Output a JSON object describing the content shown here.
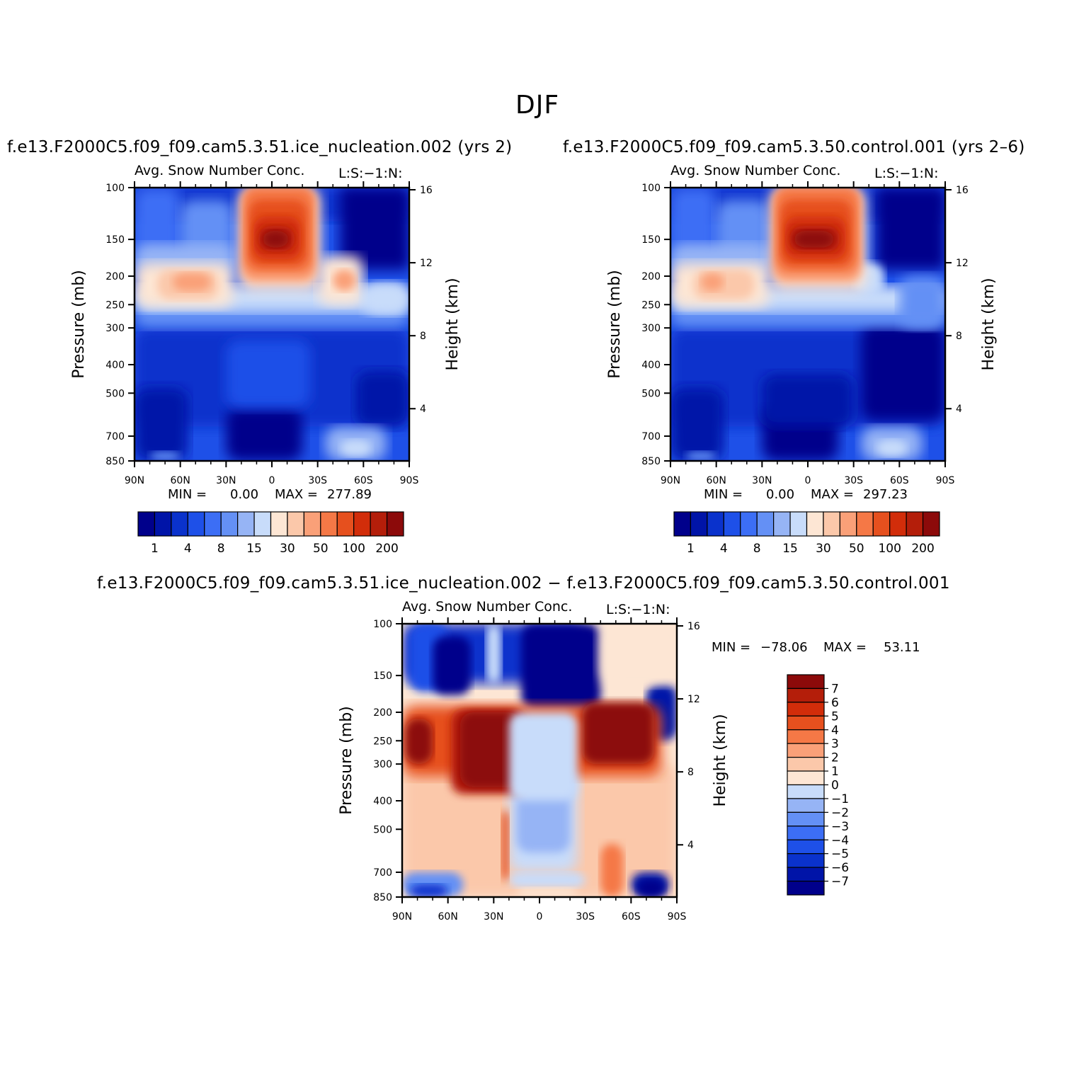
{
  "main_title": "DJF",
  "panels": [
    {
      "id": "run",
      "title": "f.e13.F2000C5.f09_f09.cam5.3.51.ice_nucleation.002 (yrs 2)",
      "subtitle_left": "Avg. Snow Number Conc.",
      "subtitle_right": "L:S:−1:N:",
      "min_label": "MIN =",
      "min_value": "0.00",
      "max_label": "MAX =",
      "max_value": "277.89"
    },
    {
      "id": "control",
      "title": "f.e13.F2000C5.f09_f09.cam5.3.50.control.001 (yrs 2–6)",
      "subtitle_left": "Avg. Snow Number Conc.",
      "subtitle_right": "L:S:−1:N:",
      "min_label": "MIN =",
      "min_value": "0.00",
      "max_label": "MAX =",
      "max_value": "297.23"
    },
    {
      "id": "diff",
      "title": "f.e13.F2000C5.f09_f09.cam5.3.51.ice_nucleation.002 − f.e13.F2000C5.f09_f09.cam5.3.50.control.001",
      "subtitle_left": "Avg. Snow Number Conc.",
      "subtitle_right": "L:S:−1:N:",
      "min_label": "MIN =",
      "min_value": "−78.06",
      "max_label": "MAX =",
      "max_value": "53.11"
    }
  ],
  "axes": {
    "ylabel_left": "Pressure (mb)",
    "ylabel_right": "Height (km)",
    "pressure_ticks": [
      "100",
      "150",
      "200",
      "250",
      "300",
      "400",
      "500",
      "700",
      "850"
    ],
    "height_ticks": [
      "16",
      "12",
      "8",
      "4"
    ],
    "lat_ticks": [
      "90N",
      "60N",
      "30N",
      "0",
      "30S",
      "60S",
      "90S"
    ]
  },
  "colorbars": {
    "absolute_labels": [
      "1",
      "4",
      "8",
      "15",
      "30",
      "50",
      "100",
      "200"
    ],
    "diff_labels": [
      "7",
      "6",
      "5",
      "4",
      "3",
      "2",
      "1",
      "0",
      "−1",
      "−2",
      "−3",
      "−4",
      "−5",
      "−6",
      "−7"
    ]
  },
  "colors": {
    "palette": [
      "#00008b",
      "#0014a8",
      "#0a32cc",
      "#1e50e8",
      "#3c6ef5",
      "#6490f5",
      "#96b4f5",
      "#c8dcfa",
      "#fde6d4",
      "#fbc8aa",
      "#faa078",
      "#f57846",
      "#e6501e",
      "#d22d0a",
      "#b41e0a",
      "#8c0a0a"
    ]
  },
  "chart_data": [
    {
      "type": "heatmap",
      "title": "Avg. Snow Number Conc.",
      "xlabel": "",
      "ylabel": "Pressure (mb)",
      "y2label": "Height (km)",
      "x_ticks": [
        "90N",
        "60N",
        "30N",
        "0",
        "30S",
        "60S",
        "90S"
      ],
      "xlim": [
        90,
        -90
      ],
      "ylim": [
        850,
        100
      ],
      "log_pressure_axis": true,
      "y_ticks": [
        100,
        150,
        200,
        250,
        300,
        400,
        500,
        700,
        850
      ],
      "y2_ticks": [
        16,
        12,
        8,
        4
      ],
      "min": 0.0,
      "max": 277.89,
      "levels": [
        1,
        2,
        4,
        6,
        8,
        10,
        15,
        20,
        30,
        40,
        50,
        75,
        100,
        150,
        200
      ],
      "features": [
        {
          "region": "tropical upper troposphere",
          "lat_range": [
            20,
            -30
          ],
          "p_range": [
            100,
            200
          ],
          "peak": 200,
          "note": "maximum near 150 mb"
        },
        {
          "region": "NH subtropical layer",
          "lat_range": [
            80,
            20
          ],
          "p_range": [
            180,
            260
          ],
          "level": 40
        },
        {
          "region": "SH subtropical layer",
          "lat_range": [
            -35,
            -55
          ],
          "p_range": [
            180,
            260
          ],
          "level": 40
        },
        {
          "region": "tropical lower troposphere",
          "lat_range": [
            25,
            -35
          ],
          "p_range": [
            650,
            850
          ],
          "level": 0.5
        }
      ]
    },
    {
      "type": "heatmap",
      "title": "Avg. Snow Number Conc.",
      "xlabel": "",
      "ylabel": "Pressure (mb)",
      "y2label": "Height (km)",
      "x_ticks": [
        "90N",
        "60N",
        "30N",
        "0",
        "30S",
        "60S",
        "90S"
      ],
      "xlim": [
        90,
        -90
      ],
      "ylim": [
        850,
        100
      ],
      "log_pressure_axis": true,
      "y_ticks": [
        100,
        150,
        200,
        250,
        300,
        400,
        500,
        700,
        850
      ],
      "y2_ticks": [
        16,
        12,
        8,
        4
      ],
      "min": 0.0,
      "max": 297.23,
      "levels": [
        1,
        2,
        4,
        6,
        8,
        10,
        15,
        20,
        30,
        40,
        50,
        75,
        100,
        150,
        200
      ],
      "features": [
        {
          "region": "tropical upper troposphere",
          "lat_range": [
            25,
            -35
          ],
          "p_range": [
            100,
            220
          ],
          "peak": 200,
          "note": "maximum near 150 mb"
        },
        {
          "region": "NH subtropical layer",
          "lat_range": [
            80,
            25
          ],
          "p_range": [
            180,
            250
          ],
          "level": 40
        },
        {
          "region": "SH mid-latitude lower troposphere",
          "lat_range": [
            -40,
            -90
          ],
          "p_range": [
            300,
            650
          ],
          "level": 0.8
        }
      ]
    },
    {
      "type": "heatmap",
      "title": "Avg. Snow Number Conc.",
      "xlabel": "",
      "ylabel": "Pressure (mb)",
      "y2label": "Height (km)",
      "x_ticks": [
        "90N",
        "60N",
        "30N",
        "0",
        "30S",
        "60S",
        "90S"
      ],
      "xlim": [
        90,
        -90
      ],
      "ylim": [
        850,
        100
      ],
      "log_pressure_axis": true,
      "y_ticks": [
        100,
        150,
        200,
        250,
        300,
        400,
        500,
        700,
        850
      ],
      "y2_ticks": [
        16,
        12,
        8,
        4
      ],
      "min": -78.06,
      "max": 53.11,
      "levels": [
        -7,
        -6,
        -5,
        -4,
        -3,
        -2,
        -1,
        0,
        1,
        2,
        3,
        4,
        5,
        6,
        7
      ],
      "features": [
        {
          "region": "tropical upper troposphere",
          "lat_range": [
            10,
            -35
          ],
          "p_range": [
            100,
            190
          ],
          "level": -7
        },
        {
          "region": "NH mid-latitude upper troposphere",
          "lat_range": [
            65,
            45
          ],
          "p_range": [
            100,
            170
          ],
          "level": -7
        },
        {
          "region": "NH subtropics",
          "lat_range": [
            55,
            10
          ],
          "p_range": [
            190,
            380
          ],
          "level": 7
        },
        {
          "region": "SH mid-latitudes",
          "lat_range": [
            -30,
            -75
          ],
          "p_range": [
            180,
            300
          ],
          "level": 7
        },
        {
          "region": "SH polar lower troposphere",
          "lat_range": [
            -60,
            -85
          ],
          "p_range": [
            700,
            850
          ],
          "level": -7
        }
      ]
    }
  ]
}
